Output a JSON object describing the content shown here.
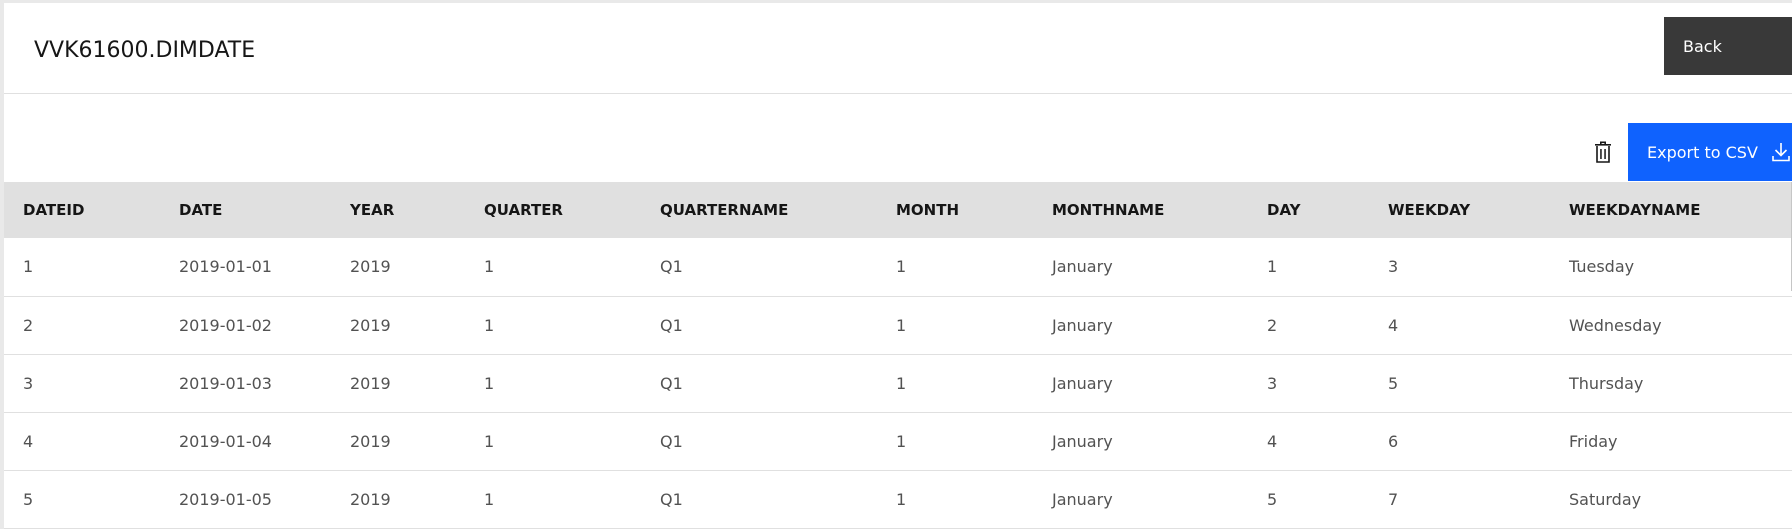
{
  "header": {
    "title": "VVK61600.DIMDATE",
    "back_label": "Back"
  },
  "toolbar": {
    "delete_icon": "trash-can-icon",
    "export_label": "Export to CSV",
    "export_icon": "download-icon",
    "accent_color": "#0f62fe"
  },
  "table": {
    "columns": [
      "DATEID",
      "DATE",
      "YEAR",
      "QUARTER",
      "QUARTERNAME",
      "MONTH",
      "MONTHNAME",
      "DAY",
      "WEEKDAY",
      "WEEKDAYNAME"
    ],
    "rows": [
      [
        "1",
        "2019-01-01",
        "2019",
        "1",
        "Q1",
        "1",
        "January",
        "1",
        "3",
        "Tuesday"
      ],
      [
        "2",
        "2019-01-02",
        "2019",
        "1",
        "Q1",
        "1",
        "January",
        "2",
        "4",
        "Wednesday"
      ],
      [
        "3",
        "2019-01-03",
        "2019",
        "1",
        "Q1",
        "1",
        "January",
        "3",
        "5",
        "Thursday"
      ],
      [
        "4",
        "2019-01-04",
        "2019",
        "1",
        "Q1",
        "1",
        "January",
        "4",
        "6",
        "Friday"
      ],
      [
        "5",
        "2019-01-05",
        "2019",
        "1",
        "Q1",
        "1",
        "January",
        "5",
        "7",
        "Saturday"
      ]
    ]
  }
}
